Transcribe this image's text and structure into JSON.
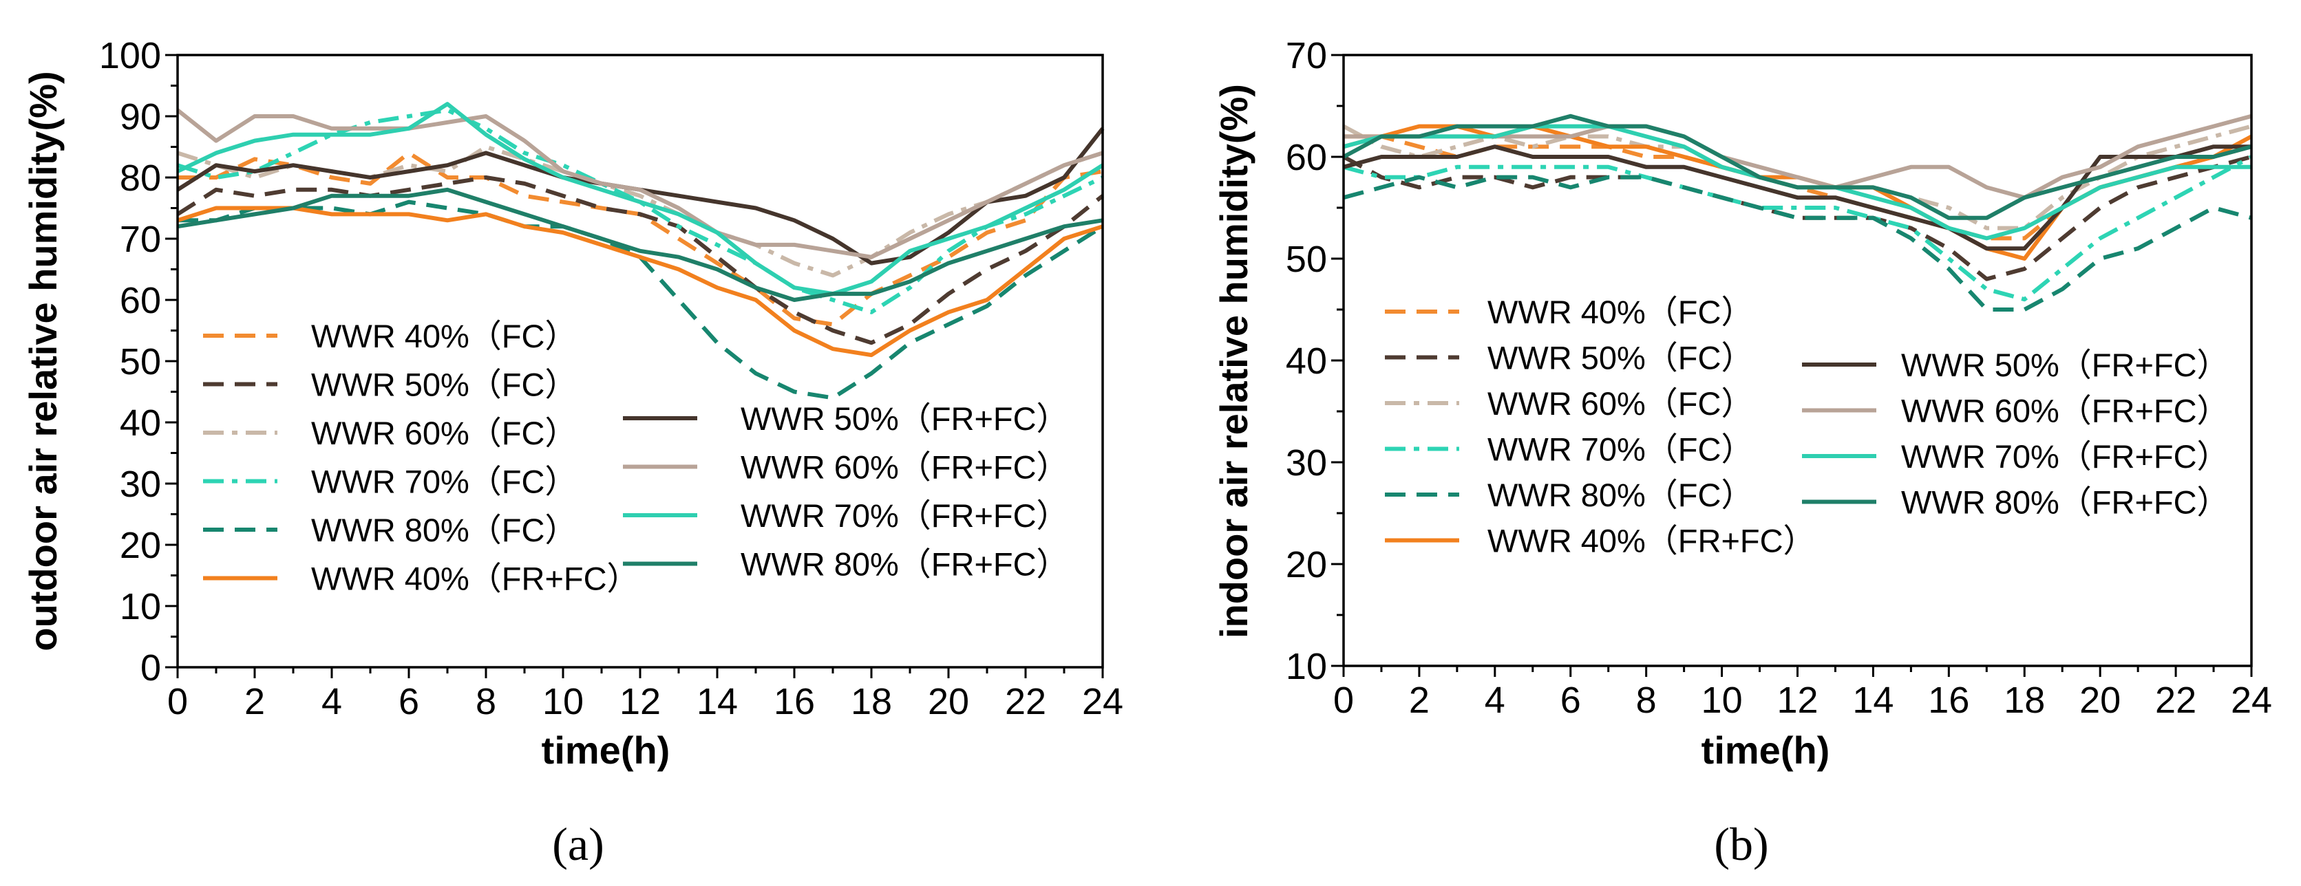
{
  "chart_data": [
    {
      "type": "line",
      "panel_label": "(a)",
      "xlabel": "time(h)",
      "ylabel": "outdoor air relative humidity(%)",
      "xlim": [
        0,
        24
      ],
      "ylim": [
        0,
        100
      ],
      "xticks": [
        0,
        2,
        4,
        6,
        8,
        10,
        12,
        14,
        16,
        18,
        20,
        22,
        24
      ],
      "yticks": [
        0,
        10,
        20,
        30,
        40,
        50,
        60,
        70,
        80,
        90,
        100
      ],
      "x": [
        0,
        1,
        2,
        3,
        4,
        5,
        6,
        7,
        8,
        9,
        10,
        11,
        12,
        13,
        14,
        15,
        16,
        17,
        18,
        19,
        20,
        21,
        22,
        23,
        24
      ],
      "legend_columns": [
        [
          "WWR 40%（FC）",
          "WWR 50%（FC）",
          "WWR 60%（FC）",
          "WWR 70%（FC）",
          "WWR 80%（FC）",
          "WWR 40%（FR+FC）"
        ],
        [
          "WWR 50%（FR+FC）",
          "WWR 60%（FR+FC）",
          "WWR 70%（FR+FC）",
          "WWR 80%（FR+FC）"
        ]
      ],
      "series": [
        {
          "name": "WWR 40%（FC）",
          "color": "#F28B30",
          "dash": "dash",
          "values": [
            80,
            80,
            83,
            82,
            80,
            79,
            84,
            80,
            80,
            77,
            76,
            75,
            74,
            70,
            66,
            62,
            57,
            56,
            61,
            64,
            67,
            71,
            73,
            80,
            81
          ]
        },
        {
          "name": "WWR 50%（FC）",
          "color": "#4E3B31",
          "dash": "dash",
          "values": [
            74,
            78,
            77,
            78,
            78,
            77,
            78,
            79,
            80,
            79,
            77,
            75,
            74,
            72,
            67,
            62,
            58,
            55,
            53,
            56,
            61,
            65,
            68,
            72,
            77
          ]
        },
        {
          "name": "WWR 60%（FC）",
          "color": "#C9B8A8",
          "dash": "dashdot",
          "values": [
            84,
            82,
            80,
            82,
            81,
            80,
            82,
            81,
            85,
            83,
            81,
            79,
            77,
            74,
            71,
            69,
            66,
            64,
            67,
            71,
            74,
            76,
            79,
            82,
            84
          ]
        },
        {
          "name": "WWR 70%（FC）",
          "color": "#2DD4B4",
          "dash": "dashdot",
          "values": [
            82,
            80,
            81,
            84,
            87,
            89,
            90,
            91,
            88,
            84,
            82,
            79,
            76,
            72,
            69,
            66,
            62,
            60,
            58,
            62,
            68,
            72,
            74,
            77,
            80
          ]
        },
        {
          "name": "WWR 80%（FC）",
          "color": "#17866F",
          "dash": "dash",
          "values": [
            73,
            73,
            75,
            75,
            75,
            74,
            76,
            75,
            74,
            72,
            72,
            70,
            67,
            60,
            53,
            48,
            45,
            44,
            48,
            53,
            56,
            59,
            64,
            68,
            72
          ]
        },
        {
          "name": "WWR 40%（FR+FC）",
          "color": "#F2801E",
          "dash": "solid",
          "values": [
            73,
            75,
            75,
            75,
            74,
            74,
            74,
            73,
            74,
            72,
            71,
            69,
            67,
            65,
            62,
            60,
            55,
            52,
            51,
            55,
            58,
            60,
            65,
            70,
            72
          ]
        },
        {
          "name": "WWR 50%（FR+FC）",
          "color": "#45352C",
          "dash": "solid",
          "values": [
            78,
            82,
            81,
            82,
            81,
            80,
            81,
            82,
            84,
            82,
            80,
            79,
            78,
            77,
            76,
            75,
            73,
            70,
            66,
            67,
            71,
            76,
            77,
            80,
            88
          ]
        },
        {
          "name": "WWR 60%（FR+FC）",
          "color": "#B8A397",
          "dash": "solid",
          "values": [
            91,
            86,
            90,
            90,
            88,
            88,
            88,
            89,
            90,
            86,
            81,
            79,
            78,
            75,
            71,
            69,
            69,
            68,
            67,
            70,
            73,
            76,
            79,
            82,
            84
          ]
        },
        {
          "name": "WWR 70%（FR+FC）",
          "color": "#2ECFB0",
          "dash": "solid",
          "values": [
            81,
            84,
            86,
            87,
            87,
            87,
            88,
            92,
            87,
            83,
            80,
            78,
            76,
            74,
            71,
            66,
            62,
            61,
            63,
            68,
            70,
            72,
            75,
            78,
            82
          ]
        },
        {
          "name": "WWR 80%（FR+FC）",
          "color": "#1F7F68",
          "dash": "solid",
          "values": [
            72,
            73,
            74,
            75,
            77,
            77,
            77,
            78,
            76,
            74,
            72,
            70,
            68,
            67,
            65,
            62,
            60,
            61,
            61,
            63,
            66,
            68,
            70,
            72,
            73
          ]
        }
      ]
    },
    {
      "type": "line",
      "panel_label": "(b)",
      "xlabel": "time(h)",
      "ylabel": "indoor air relative humidity(%)",
      "xlim": [
        0,
        24
      ],
      "ylim": [
        10,
        70
      ],
      "xticks": [
        0,
        2,
        4,
        6,
        8,
        10,
        12,
        14,
        16,
        18,
        20,
        22,
        24
      ],
      "yticks": [
        10,
        20,
        30,
        40,
        50,
        60,
        70
      ],
      "x": [
        0,
        1,
        2,
        3,
        4,
        5,
        6,
        7,
        8,
        9,
        10,
        11,
        12,
        13,
        14,
        15,
        16,
        17,
        18,
        19,
        20,
        21,
        22,
        23,
        24
      ],
      "legend_columns": [
        [
          "WWR 40%（FC）",
          "WWR 50%（FC）",
          "WWR 60%（FC）",
          "WWR 70%（FC）",
          "WWR 80%（FC）",
          "WWR 40%（FR+FC）"
        ],
        [
          "WWR 50%（FR+FC）",
          "WWR 60%（FR+FC）",
          "WWR 70%（FR+FC）",
          "WWR 80%（FR+FC）"
        ]
      ],
      "series": [
        {
          "name": "WWR 40%（FC）",
          "color": "#F28B30",
          "dash": "dash",
          "values": [
            61,
            62,
            61,
            60,
            61,
            61,
            61,
            61,
            60,
            60,
            59,
            58,
            57,
            56,
            55,
            54,
            53,
            52,
            52,
            55,
            57,
            58,
            59,
            60,
            61
          ]
        },
        {
          "name": "WWR 50%（FC）",
          "color": "#4E3B31",
          "dash": "dash",
          "values": [
            60,
            58,
            57,
            58,
            58,
            57,
            58,
            58,
            58,
            57,
            56,
            55,
            54,
            54,
            54,
            53,
            51,
            48,
            49,
            52,
            55,
            57,
            58,
            59,
            60
          ]
        },
        {
          "name": "WWR 60%（FC）",
          "color": "#C9B8A8",
          "dash": "dashdot",
          "values": [
            63,
            61,
            60,
            61,
            62,
            61,
            62,
            62,
            61,
            61,
            59,
            58,
            57,
            57,
            57,
            56,
            55,
            53,
            53,
            56,
            58,
            60,
            61,
            62,
            63
          ]
        },
        {
          "name": "WWR 70%（FC）",
          "color": "#2DD4B4",
          "dash": "dashdot",
          "values": [
            59,
            58,
            58,
            59,
            59,
            59,
            59,
            59,
            58,
            57,
            56,
            55,
            55,
            55,
            54,
            53,
            50,
            47,
            46,
            49,
            52,
            54,
            56,
            58,
            60
          ]
        },
        {
          "name": "WWR 80%（FC）",
          "color": "#17866F",
          "dash": "dash",
          "values": [
            56,
            57,
            58,
            57,
            58,
            58,
            57,
            58,
            58,
            57,
            56,
            55,
            54,
            54,
            54,
            52,
            49,
            45,
            45,
            47,
            50,
            51,
            53,
            55,
            54
          ]
        },
        {
          "name": "WWR 40%（FR+FC）",
          "color": "#F2801E",
          "dash": "solid",
          "values": [
            62,
            62,
            63,
            63,
            62,
            63,
            62,
            61,
            61,
            60,
            59,
            58,
            58,
            57,
            57,
            55,
            53,
            51,
            50,
            55,
            57,
            58,
            59,
            60,
            62
          ]
        },
        {
          "name": "WWR 50%（FR+FC）",
          "color": "#45352C",
          "dash": "solid",
          "values": [
            59,
            60,
            60,
            60,
            61,
            60,
            60,
            60,
            59,
            59,
            58,
            57,
            56,
            56,
            55,
            54,
            53,
            51,
            51,
            55,
            60,
            60,
            60,
            61,
            61
          ]
        },
        {
          "name": "WWR 60%（FR+FC）",
          "color": "#B8A397",
          "dash": "solid",
          "values": [
            62,
            62,
            62,
            62,
            62,
            62,
            62,
            63,
            63,
            62,
            60,
            59,
            58,
            57,
            58,
            59,
            59,
            57,
            56,
            58,
            59,
            61,
            62,
            63,
            64
          ]
        },
        {
          "name": "WWR 70%（FR+FC）",
          "color": "#2ECFB0",
          "dash": "solid",
          "values": [
            61,
            62,
            62,
            62,
            62,
            63,
            63,
            63,
            62,
            61,
            59,
            58,
            57,
            57,
            56,
            55,
            53,
            52,
            53,
            55,
            57,
            58,
            59,
            59,
            59
          ]
        },
        {
          "name": "WWR 80%（FR+FC）",
          "color": "#1F7F68",
          "dash": "solid",
          "values": [
            60,
            62,
            62,
            63,
            63,
            63,
            64,
            63,
            63,
            62,
            60,
            58,
            57,
            57,
            57,
            56,
            54,
            54,
            56,
            57,
            58,
            59,
            60,
            60,
            61
          ]
        }
      ]
    }
  ]
}
